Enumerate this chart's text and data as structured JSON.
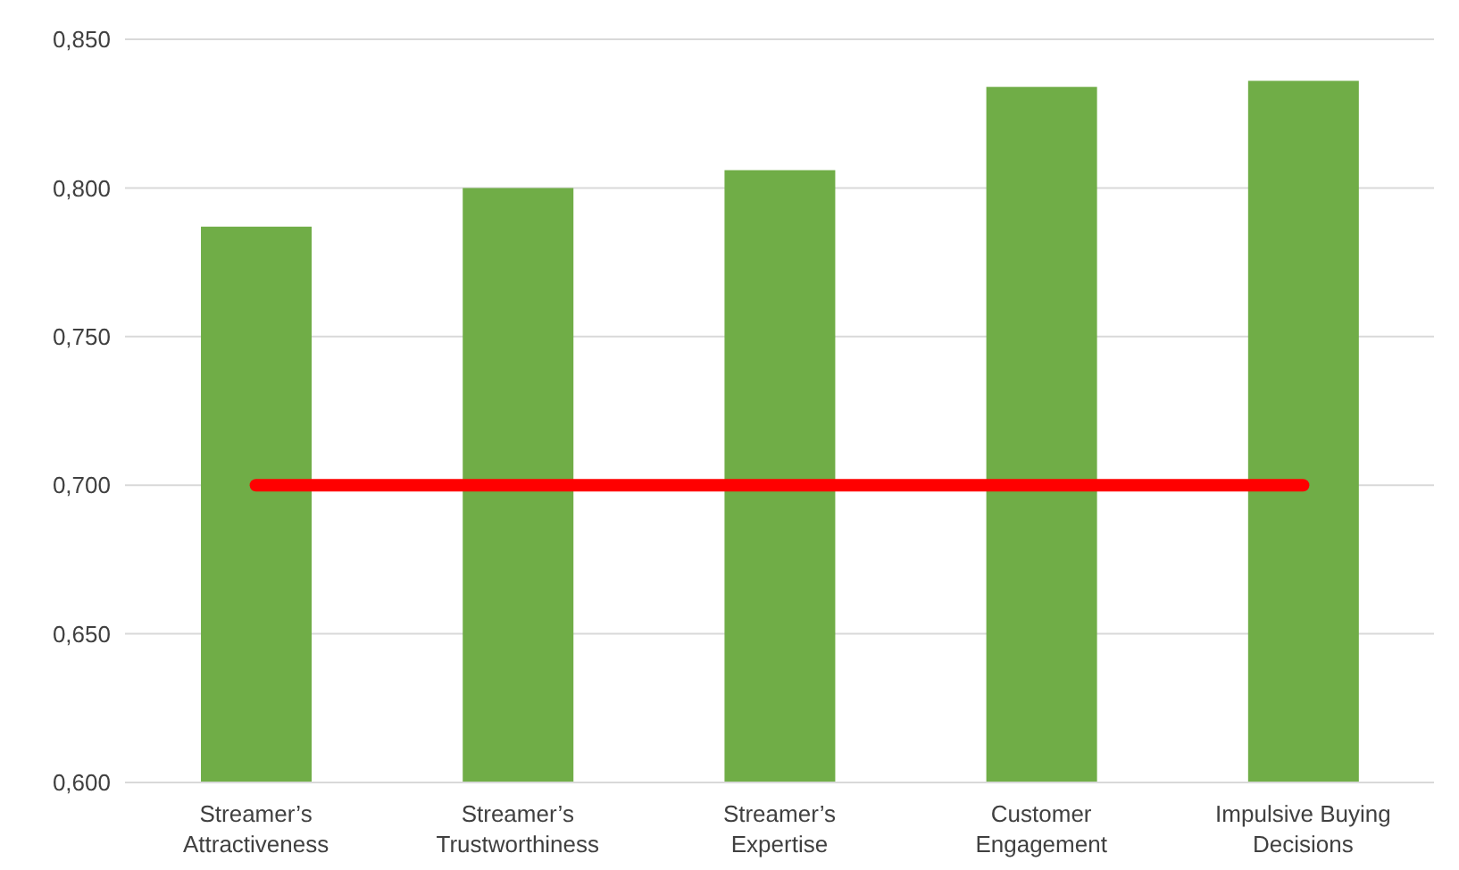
{
  "chart_data": {
    "type": "bar",
    "categories": [
      "Streamer’s Attractiveness",
      "Streamer’s Trustworthiness",
      "Streamer’s Expertise",
      "Customer Engagement",
      "Impulsive Buying Decisions"
    ],
    "series": [
      {
        "color": "#70ad47",
        "values": [
          0.787,
          0.8,
          0.806,
          0.834,
          0.836
        ]
      },
      {
        "type": "line",
        "color": "#ff0000",
        "values": [
          0.7,
          0.7,
          0.7,
          0.7,
          0.7
        ]
      }
    ],
    "ylim": [
      0.6,
      0.85
    ],
    "yticks": [
      {
        "value": 0.6,
        "label": "0,600"
      },
      {
        "value": 0.65,
        "label": "0,650"
      },
      {
        "value": 0.7,
        "label": "0,700"
      },
      {
        "value": 0.75,
        "label": "0,750"
      },
      {
        "value": 0.8,
        "label": "0,800"
      },
      {
        "value": 0.85,
        "label": "0,850"
      }
    ],
    "grid": "y",
    "marker": "none",
    "line_style": "solid",
    "legend": false
  }
}
